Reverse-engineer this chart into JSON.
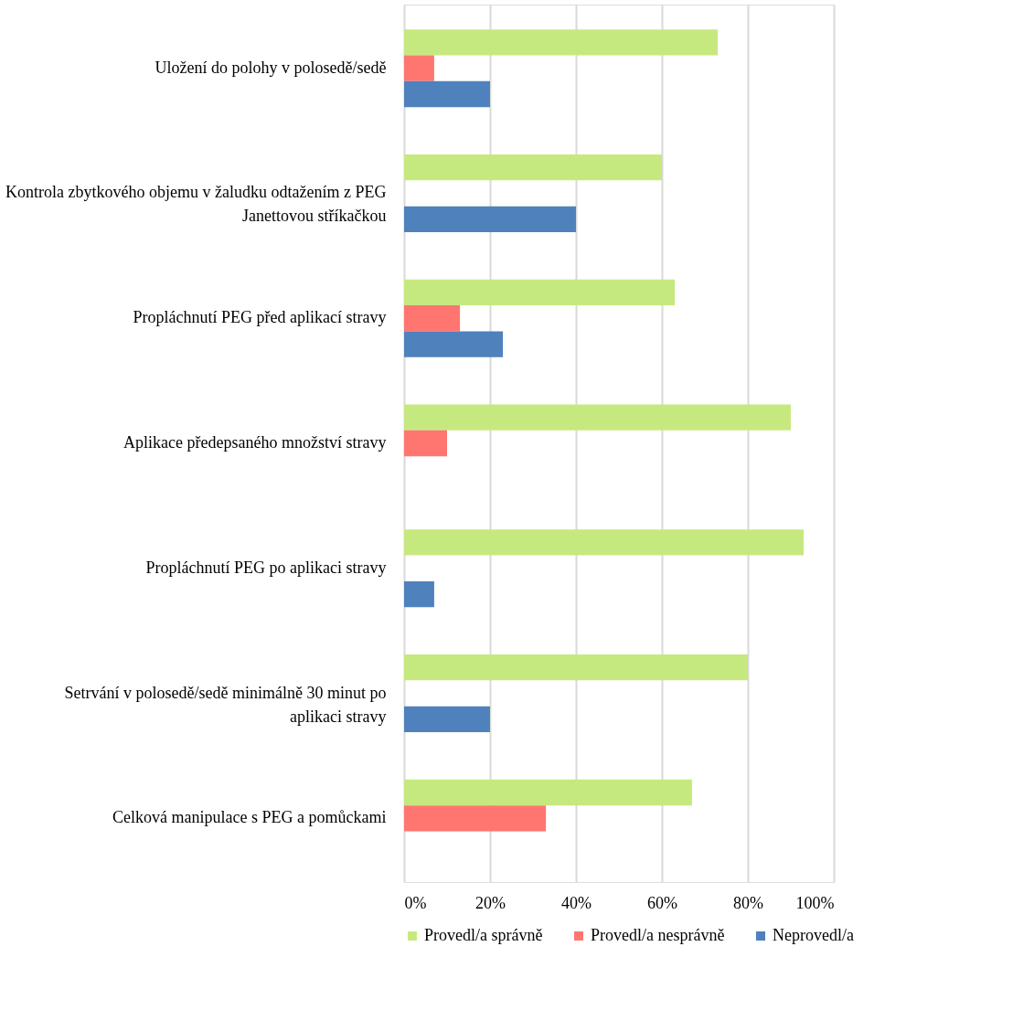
{
  "chart_data": {
    "type": "bar",
    "orientation": "horizontal",
    "categories": [
      "Uložení do polohy v polosedě/sedě",
      "Kontrola zbytkového objemu v žaludku odtažením z PEG Janettovou stříkačkou",
      "Propláchnutí PEG před aplikací stravy",
      "Aplikace předepsaného množství stravy",
      "Propláchnutí PEG po aplikaci stravy",
      "Setrvání v polosedě/sedě minimálně 30 minut po aplikaci stravy",
      "Celková manipulace s PEG a pomůckami"
    ],
    "series": [
      {
        "name": "Provedl/a správně",
        "color": "#c6e97f",
        "values": [
          73,
          60,
          63,
          90,
          93,
          80,
          67
        ]
      },
      {
        "name": "Provedl/a nesprávně",
        "color": "#ff7670",
        "values": [
          7,
          0,
          13,
          10,
          0,
          0,
          33
        ]
      },
      {
        "name": "Neprovedl/a",
        "color": "#4f81bd",
        "values": [
          20,
          40,
          23,
          0,
          7,
          20,
          0
        ]
      }
    ],
    "xlim": [
      0,
      100
    ],
    "xticks": [
      {
        "value": 0,
        "label": "0%"
      },
      {
        "value": 20,
        "label": "20%"
      },
      {
        "value": 40,
        "label": "40%"
      },
      {
        "value": 60,
        "label": "60%"
      },
      {
        "value": 80,
        "label": "80%"
      },
      {
        "value": 100,
        "label": "100%"
      }
    ],
    "grid": "x",
    "legend": "bottom"
  }
}
